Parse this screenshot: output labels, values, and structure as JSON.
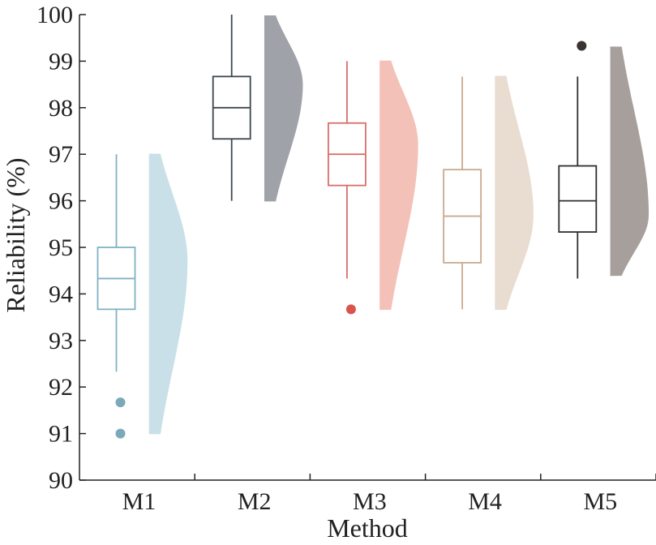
{
  "chart_data": {
    "type": "raincloud",
    "xlabel": "Method",
    "ylabel": "Reliability (%)",
    "ylim": [
      90,
      100
    ],
    "yticks": [
      "90",
      "91",
      "92",
      "93",
      "94",
      "95",
      "96",
      "97",
      "98",
      "99",
      "100"
    ],
    "series": [
      {
        "name": "M1",
        "box": {
          "whisker_low": 92.33,
          "q1": 93.67,
          "median": 94.33,
          "q3": 95.0,
          "whisker_high": 97.0
        },
        "outliers": [
          91.67,
          91.0
        ],
        "density": {
          "min": 91.0,
          "max": 97.0,
          "peak": 94.7
        },
        "colors": {
          "box": "#7fb2c3",
          "fill": "#c7dfe7",
          "outlier": "#7ba9ba"
        }
      },
      {
        "name": "M2",
        "box": {
          "whisker_low": 96.0,
          "q1": 97.33,
          "median": 98.0,
          "q3": 98.67,
          "whisker_high": 100.0
        },
        "outliers": [],
        "density": {
          "min": 96.0,
          "max": 99.97,
          "peak": 98.5
        },
        "colors": {
          "box": "#3c474d",
          "fill": "#9b9ea5",
          "outlier": "#3c474d"
        }
      },
      {
        "name": "M3",
        "box": {
          "whisker_low": 94.33,
          "q1": 96.33,
          "median": 97.0,
          "q3": 97.67,
          "whisker_high": 99.0
        },
        "outliers": [
          93.67
        ],
        "density": {
          "min": 93.67,
          "max": 99.0,
          "peak": 97.2
        },
        "colors": {
          "box": "#d8706a",
          "fill": "#f4beb5",
          "outlier": "#d9534f"
        }
      },
      {
        "name": "M4",
        "box": {
          "whisker_low": 93.67,
          "q1": 94.67,
          "median": 95.67,
          "q3": 96.67,
          "whisker_high": 98.67
        },
        "outliers": [],
        "density": {
          "min": 93.67,
          "max": 98.67,
          "peak": 95.7
        },
        "colors": {
          "box": "#c9aa90",
          "fill": "#e8dbcf",
          "outlier": "#c9aa90"
        }
      },
      {
        "name": "M5",
        "box": {
          "whisker_low": 94.33,
          "q1": 95.33,
          "median": 96.0,
          "q3": 96.75,
          "whisker_high": 98.67
        },
        "outliers": [
          99.33
        ],
        "density": {
          "min": 94.4,
          "max": 99.3,
          "peak": 95.7
        },
        "colors": {
          "box": "#2f302c",
          "fill": "#a39a96",
          "outlier": "#3b3330"
        }
      }
    ]
  }
}
